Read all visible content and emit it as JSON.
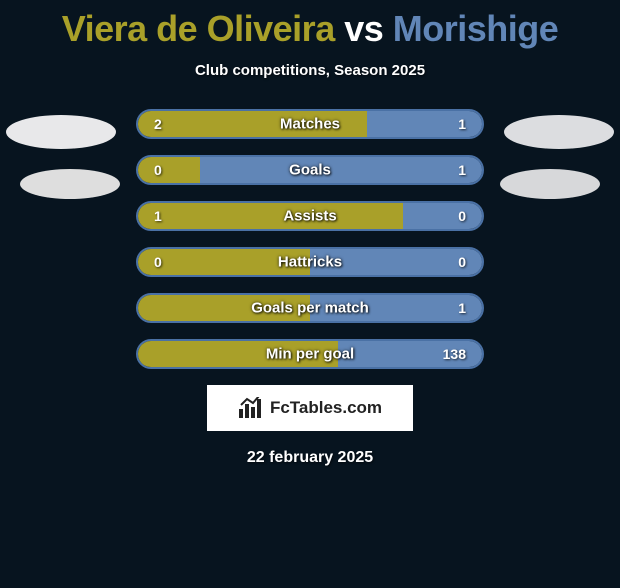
{
  "title": {
    "player1": "Viera de Oliveira",
    "vs": " vs ",
    "player2": "Morishige",
    "color1": "#a9a029",
    "color_vs": "#ffffff",
    "color2": "#6186b7"
  },
  "subtitle": "Club competitions, Season 2025",
  "avatars": {
    "left_color": "#e8e8ea",
    "right_color": "#dcdde0",
    "left2_color": "#dedede",
    "right2_color": "#d7d8da"
  },
  "bar_style": {
    "border_color": "#4a71a5",
    "border_width": 2,
    "left_fill": "#a9a029",
    "right_fill": "#6186b7",
    "track_bg": "#07141f",
    "radius": 15
  },
  "stats": [
    {
      "label": "Matches",
      "left_val": "2",
      "right_val": "1",
      "left_pct": 66.7,
      "right_pct": 33.3
    },
    {
      "label": "Goals",
      "left_val": "0",
      "right_val": "1",
      "left_pct": 18,
      "right_pct": 82
    },
    {
      "label": "Assists",
      "left_val": "1",
      "right_val": "0",
      "left_pct": 77,
      "right_pct": 23
    },
    {
      "label": "Hattricks",
      "left_val": "0",
      "right_val": "0",
      "left_pct": 50,
      "right_pct": 50
    },
    {
      "label": "Goals per match",
      "left_val": "",
      "right_val": "1",
      "left_pct": 50,
      "right_pct": 50
    },
    {
      "label": "Min per goal",
      "left_val": "",
      "right_val": "138",
      "left_pct": 58,
      "right_pct": 42
    }
  ],
  "badge": {
    "text": "FcTables.com"
  },
  "date": "22 february 2025"
}
